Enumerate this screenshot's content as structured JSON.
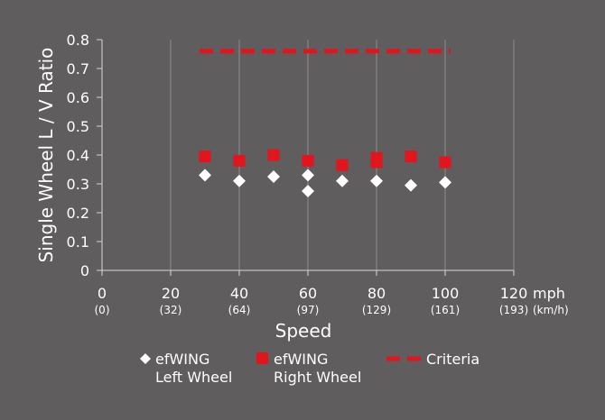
{
  "chart_data": {
    "type": "scatter",
    "ylabel": "Single Wheel L / V Ratio",
    "xlabel": "Speed",
    "x_unit_primary": "mph",
    "x_unit_secondary": "(km/h)",
    "xlim": [
      0,
      120
    ],
    "ylim": [
      0,
      0.8
    ],
    "x_ticks": [
      {
        "value": 0,
        "label": "0",
        "sub": "(0)"
      },
      {
        "value": 20,
        "label": "20",
        "sub": "(32)"
      },
      {
        "value": 40,
        "label": "40",
        "sub": "(64)"
      },
      {
        "value": 60,
        "label": "60",
        "sub": "(97)"
      },
      {
        "value": 80,
        "label": "80",
        "sub": "(129)"
      },
      {
        "value": 100,
        "label": "100",
        "sub": "(161)"
      },
      {
        "value": 120,
        "label": "120",
        "sub": "(193)"
      }
    ],
    "y_ticks": [
      {
        "value": 0,
        "label": "0"
      },
      {
        "value": 0.1,
        "label": "0.1"
      },
      {
        "value": 0.2,
        "label": "0.2"
      },
      {
        "value": 0.3,
        "label": "0.3"
      },
      {
        "value": 0.4,
        "label": "0.4"
      },
      {
        "value": 0.5,
        "label": "0.5"
      },
      {
        "value": 0.6,
        "label": "0.6"
      },
      {
        "value": 0.7,
        "label": "0.7"
      },
      {
        "value": 0.8,
        "label": "0.8"
      }
    ],
    "grid": {
      "vertical": true,
      "horizontal": false
    },
    "legend_position": "bottom",
    "series": [
      {
        "name": "efWING Left Wheel",
        "legend_line1": "efWING",
        "legend_line2": "Left Wheel",
        "marker": "diamond",
        "color": "#ffffff",
        "points": [
          {
            "x": 30,
            "y": 0.33
          },
          {
            "x": 40,
            "y": 0.31
          },
          {
            "x": 50,
            "y": 0.325
          },
          {
            "x": 60,
            "y": 0.33
          },
          {
            "x": 60,
            "y": 0.275
          },
          {
            "x": 70,
            "y": 0.31
          },
          {
            "x": 80,
            "y": 0.31
          },
          {
            "x": 90,
            "y": 0.295
          },
          {
            "x": 100,
            "y": 0.305
          }
        ]
      },
      {
        "name": "efWING Right Wheel",
        "legend_line1": "efWING",
        "legend_line2": "Right Wheel",
        "marker": "square",
        "color": "#e3141b",
        "points": [
          {
            "x": 30,
            "y": 0.395
          },
          {
            "x": 40,
            "y": 0.38
          },
          {
            "x": 50,
            "y": 0.4
          },
          {
            "x": 60,
            "y": 0.38
          },
          {
            "x": 70,
            "y": 0.365
          },
          {
            "x": 80,
            "y": 0.39
          },
          {
            "x": 80,
            "y": 0.375
          },
          {
            "x": 90,
            "y": 0.395
          },
          {
            "x": 100,
            "y": 0.375
          }
        ]
      },
      {
        "name": "Criteria",
        "legend_line1": "Criteria",
        "marker": "dashed-line",
        "color": "#e3141b",
        "x_range": [
          30,
          100
        ],
        "y": 0.76
      }
    ]
  }
}
